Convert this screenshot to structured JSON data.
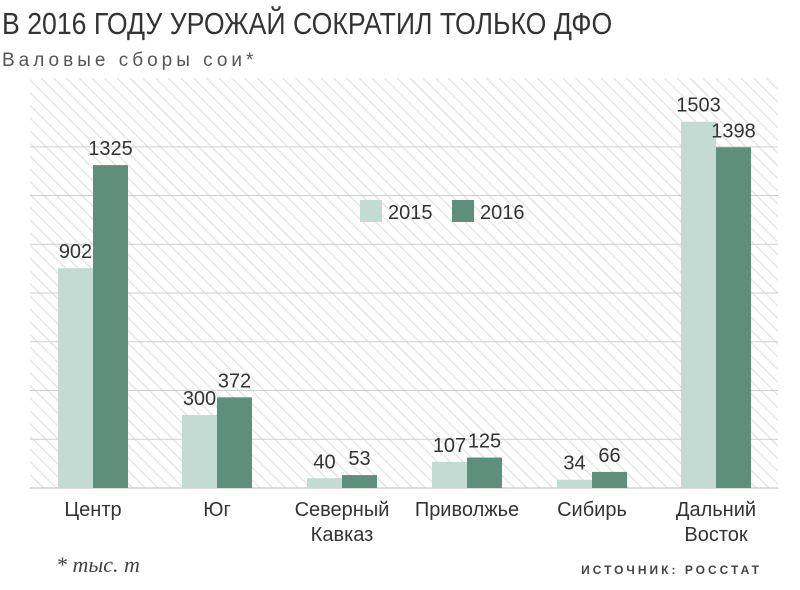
{
  "header": {
    "title": "В 2016 ГОДУ УРОЖАЙ СОКРАТИЛ ТОЛЬКО ДФО",
    "subtitle": "Валовые сборы сои*"
  },
  "footer": {
    "footnote": "* тыс. т",
    "source": "ИСТОЧНИК: РОССТАТ"
  },
  "colors": {
    "series_2015": "#c3dbd2",
    "series_2016": "#5e8e7c",
    "gridline": "#cfcfcf",
    "hatch": "#e6e6e6"
  },
  "chart_data": {
    "type": "bar",
    "title": "В 2016 ГОДУ УРОЖАЙ СОКРАТИЛ ТОЛЬКО ДФО",
    "subtitle": "Валовые сборы сои*",
    "categories": [
      [
        "Центр"
      ],
      [
        "Юг"
      ],
      [
        "Северный",
        "Кавказ"
      ],
      [
        "Приволжье"
      ],
      [
        "Сибирь"
      ],
      [
        "Дальний",
        "Восток"
      ]
    ],
    "series": [
      {
        "name": "2015",
        "values": [
          902,
          300,
          40,
          107,
          34,
          1503
        ]
      },
      {
        "name": "2016",
        "values": [
          1325,
          372,
          53,
          125,
          66,
          1398
        ]
      }
    ],
    "ylim": [
      0,
      1600
    ],
    "grid": true,
    "legend": "top-center"
  }
}
